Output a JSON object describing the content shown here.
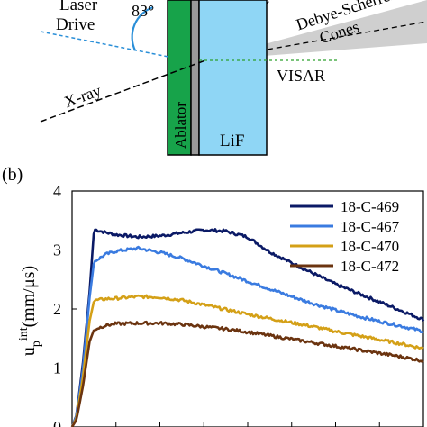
{
  "panel_a": {
    "labels": {
      "laser_drive": "Laser\nDrive",
      "angle": "83°",
      "xray": "X-ray",
      "debye_cones": "Debye-Scherrer\nCones",
      "visar": "VISAR",
      "ablator": "Ablator",
      "lif": "LiF"
    },
    "colors": {
      "ablator": "#17a34a",
      "lif": "#8fd6f5",
      "gray_strip": "#9a9a9a",
      "laser_line": "#2a8fd8",
      "visar_line": "#2ca02c",
      "angle_arc": "#2a8fd8",
      "cone_fill": "#cfcfcf"
    }
  },
  "panel_b": {
    "label": "(b)"
  },
  "chart_data": {
    "type": "line",
    "ylabel_base": "u",
    "ylabel_sub": "p",
    "ylabel_sup": "int",
    "ylabel_unit": "(mm/μs)",
    "ylim": [
      0,
      4
    ],
    "yticks": [
      "0",
      "1",
      "2",
      "3",
      "4"
    ],
    "xlim": [
      0,
      16
    ],
    "xtick_labels_visible": false,
    "legend_position": "top-right",
    "series": [
      {
        "name": "18-C-469",
        "color": "#0b1a66",
        "x": [
          0,
          0.2,
          0.5,
          0.8,
          1,
          1.5,
          2,
          3,
          4,
          5,
          6,
          7,
          8,
          9,
          10,
          11,
          12,
          13,
          14,
          15,
          16
        ],
        "y": [
          0,
          0.2,
          1.1,
          2.3,
          3.35,
          3.3,
          3.26,
          3.22,
          3.24,
          3.29,
          3.34,
          3.32,
          3.22,
          2.97,
          2.78,
          2.6,
          2.42,
          2.27,
          2.12,
          1.97,
          1.82
        ]
      },
      {
        "name": "18-C-467",
        "color": "#3a7be0",
        "x": [
          0,
          0.2,
          0.5,
          0.8,
          1,
          1.5,
          2,
          3,
          4,
          5,
          6,
          7,
          8,
          9,
          10,
          11,
          12,
          13,
          14,
          15,
          16
        ],
        "y": [
          0,
          0.18,
          1.0,
          2.2,
          2.8,
          2.92,
          2.98,
          3.03,
          2.96,
          2.86,
          2.73,
          2.6,
          2.47,
          2.34,
          2.21,
          2.09,
          1.98,
          1.88,
          1.79,
          1.71,
          1.62
        ]
      },
      {
        "name": "18-C-470",
        "color": "#d4a017",
        "x": [
          0,
          0.2,
          0.5,
          0.8,
          1,
          1.5,
          2,
          3,
          4,
          5,
          6,
          7,
          8,
          9,
          10,
          11,
          12,
          13,
          14,
          15,
          16
        ],
        "y": [
          0,
          0.15,
          0.85,
          1.8,
          2.14,
          2.17,
          2.18,
          2.21,
          2.2,
          2.15,
          2.07,
          1.99,
          1.91,
          1.84,
          1.77,
          1.7,
          1.62,
          1.55,
          1.48,
          1.41,
          1.33
        ]
      },
      {
        "name": "18-C-472",
        "color": "#6b3410",
        "x": [
          0,
          0.2,
          0.5,
          0.8,
          1,
          1.5,
          2,
          3,
          4,
          5,
          6,
          7,
          8,
          9,
          10,
          11,
          12,
          13,
          14,
          15,
          16
        ],
        "y": [
          0,
          0.12,
          0.7,
          1.45,
          1.65,
          1.72,
          1.75,
          1.76,
          1.76,
          1.74,
          1.7,
          1.66,
          1.61,
          1.55,
          1.49,
          1.43,
          1.37,
          1.31,
          1.25,
          1.19,
          1.12
        ]
      }
    ]
  }
}
